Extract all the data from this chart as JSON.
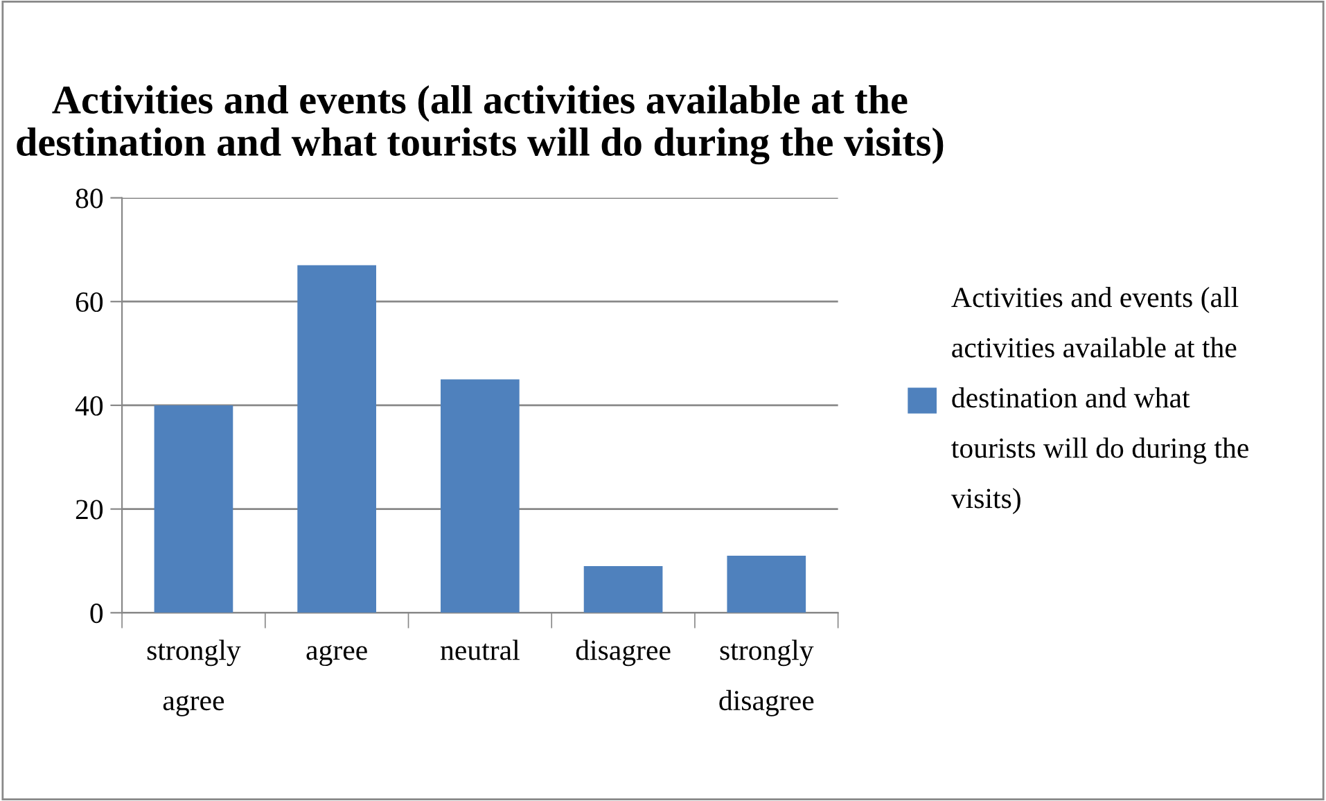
{
  "chart_data": {
    "type": "bar",
    "title": "Activities and events (all activities available at the destination and what tourists will do during the visits)",
    "categories": [
      "strongly agree",
      "agree",
      "neutral",
      "disagree",
      "strongly disagree"
    ],
    "series": [
      {
        "name": "Activities and events (all activities available at the destination and what tourists will do during the visits)",
        "color": "#4f81bd",
        "values": [
          40,
          67,
          45,
          9,
          11
        ]
      }
    ],
    "ylim": [
      0,
      80
    ],
    "yticks": [
      0,
      20,
      40,
      60,
      80
    ],
    "grid": "y",
    "legend": "right"
  }
}
